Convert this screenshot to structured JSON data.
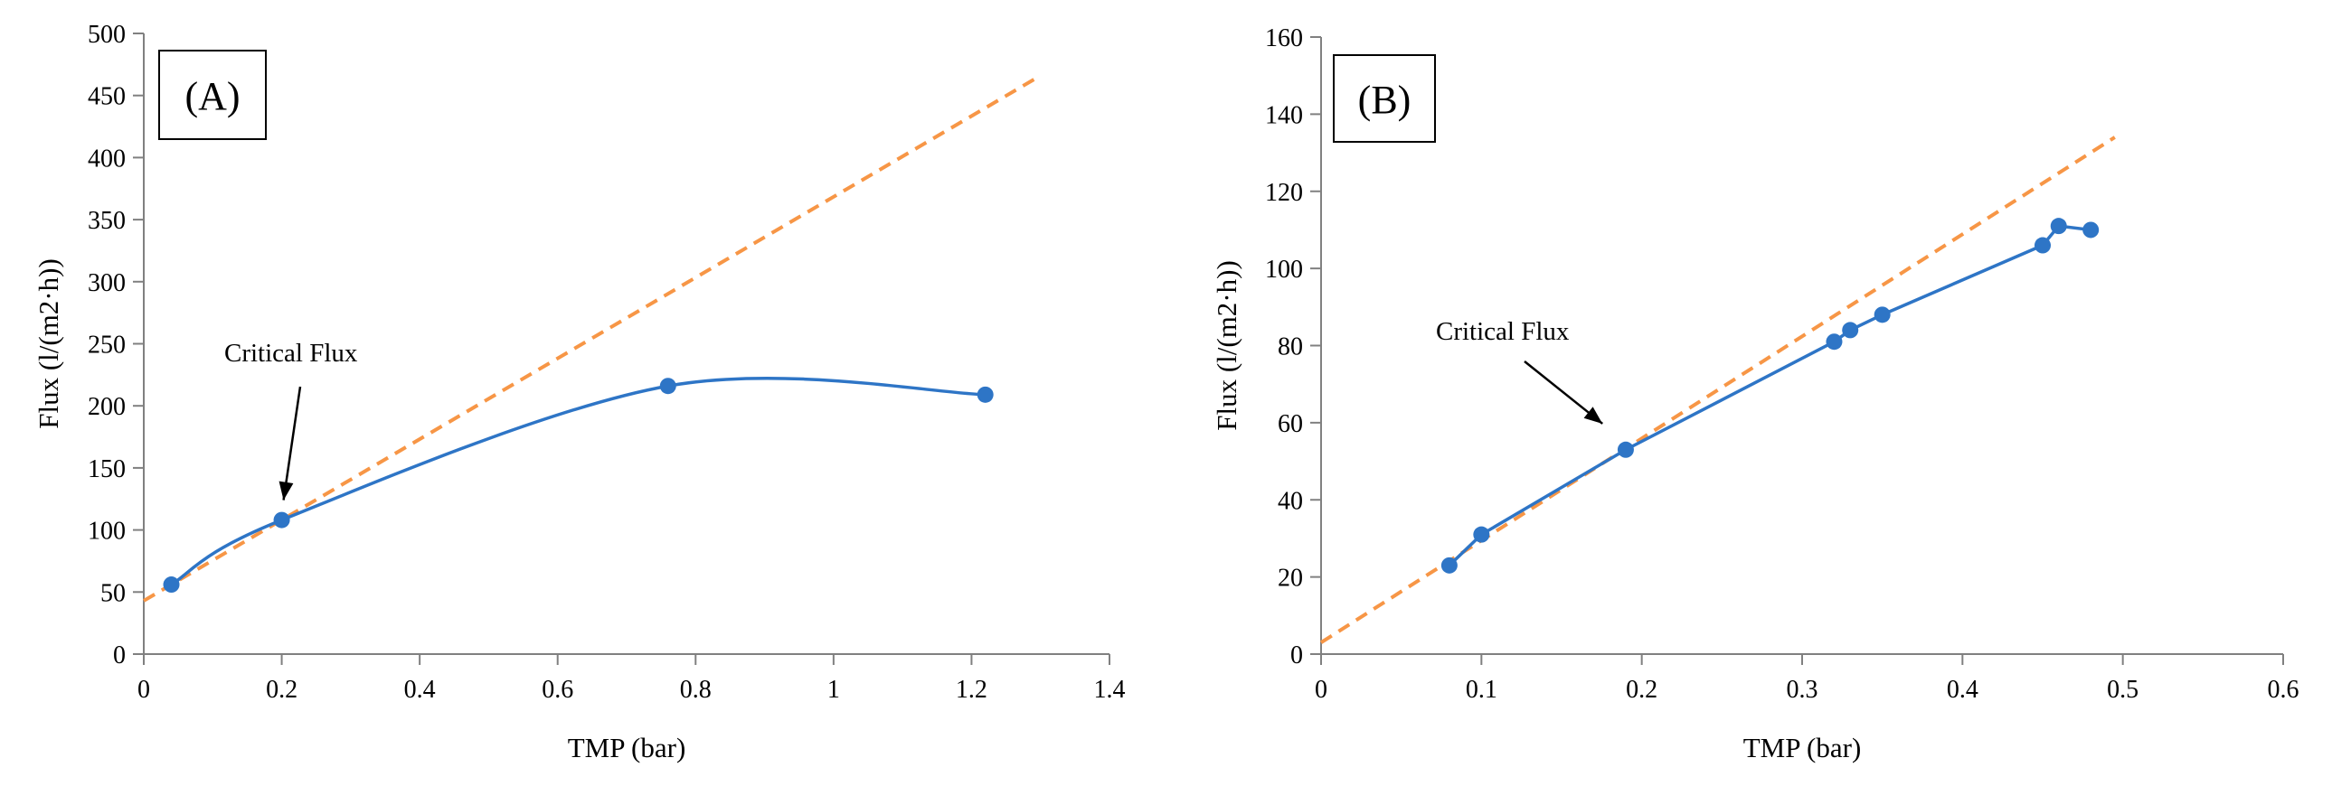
{
  "colors": {
    "series": "#2E75C6",
    "trend": "#F79646",
    "axis": "#808080",
    "text": "#000000"
  },
  "chart_data": [
    {
      "type": "scatter",
      "panel_label": "(A)",
      "title": "",
      "xlabel": "TMP (bar)",
      "ylabel": "Flux (l/(m2·h))",
      "xlim": [
        0,
        1.4
      ],
      "ylim": [
        0,
        500
      ],
      "xticks": [
        0,
        0.2,
        0.4,
        0.6,
        0.8,
        1,
        1.2,
        1.4
      ],
      "xtick_labels": [
        "0",
        "0.2",
        "0.4",
        "0.6",
        "0.8",
        "1",
        "1.2",
        "1.4"
      ],
      "yticks": [
        0,
        50,
        100,
        150,
        200,
        250,
        300,
        350,
        400,
        450,
        500
      ],
      "ytick_labels": [
        "0",
        "50",
        "100",
        "150",
        "200",
        "250",
        "300",
        "350",
        "400",
        "450",
        "500"
      ],
      "series": [
        {
          "name": "Flux",
          "smooth": true,
          "x": [
            0.04,
            0.2,
            0.76,
            1.22
          ],
          "y": [
            56,
            108,
            216,
            209
          ]
        }
      ],
      "trendline": {
        "name": "Linear",
        "x": [
          0,
          1.3
        ],
        "y": [
          43,
          466
        ]
      },
      "annotation": {
        "text": "Critical Flux",
        "target_x": 0.2,
        "target_y": 108
      },
      "legend": "none"
    },
    {
      "type": "scatter",
      "panel_label": "(B)",
      "title": "",
      "xlabel": "TMP (bar)",
      "ylabel": "Flux (l/(m2·h))",
      "xlim": [
        0,
        0.6
      ],
      "ylim": [
        0,
        160
      ],
      "xticks": [
        0,
        0.1,
        0.2,
        0.3,
        0.4,
        0.5,
        0.6
      ],
      "xtick_labels": [
        "0",
        "0.1",
        "0.2",
        "0.3",
        "0.4",
        "0.5",
        "0.6"
      ],
      "yticks": [
        0,
        20,
        40,
        60,
        80,
        100,
        120,
        140,
        160
      ],
      "ytick_labels": [
        "0",
        "20",
        "40",
        "60",
        "80",
        "100",
        "120",
        "140",
        "160"
      ],
      "series": [
        {
          "name": "Flux",
          "smooth": false,
          "x": [
            0.08,
            0.1,
            0.19,
            0.32,
            0.33,
            0.35,
            0.45,
            0.46,
            0.48
          ],
          "y": [
            23,
            31,
            53,
            81,
            84,
            88,
            106,
            111,
            110
          ]
        }
      ],
      "trendline": {
        "name": "Linear",
        "x": [
          0,
          0.495
        ],
        "y": [
          3,
          134
        ]
      },
      "annotation": {
        "text": "Critical Flux",
        "target_x": 0.18,
        "target_y": 56
      },
      "legend": "none"
    }
  ]
}
